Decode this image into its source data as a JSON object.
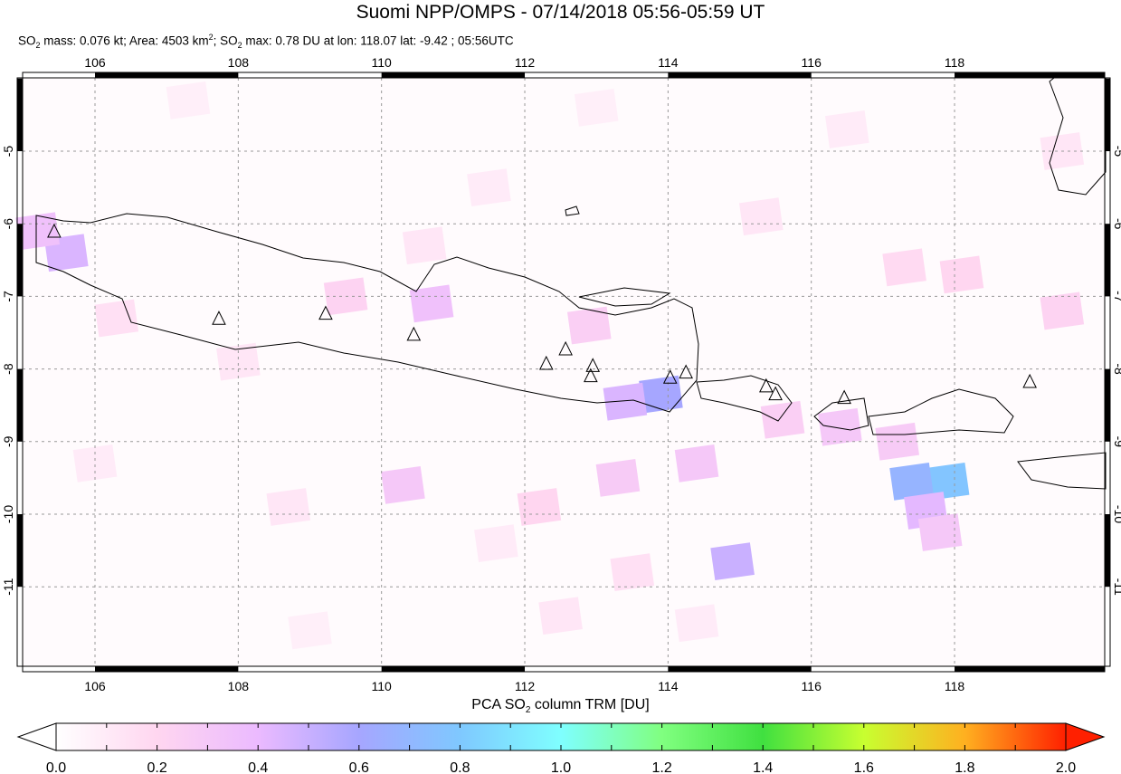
{
  "title": "Suomi NPP/OMPS - 07/14/2018 05:56-05:59 UT",
  "subtitle": {
    "so2_label": "SO",
    "mass_text": " mass: 0.076 kt; Area: 4503 km",
    "so2max_text": "; SO",
    "max_text": " max: 0.78 DU at lon: 118.07 lat: -9.42 ; 05:56UTC",
    "sub2": "2",
    "sup2": "2"
  },
  "map": {
    "lon_range": [
      105,
      120.1
    ],
    "lat_range": [
      -12.1,
      -4
    ],
    "lon_ticks": [
      "106",
      "108",
      "110",
      "112",
      "114",
      "116",
      "118"
    ],
    "lat_ticks": [
      "-5",
      "-6",
      "-7",
      "-8",
      "-9",
      "-10",
      "-11"
    ],
    "volcanoes": [
      [
        105.43,
        -6.11
      ],
      [
        107.73,
        -7.31
      ],
      [
        109.22,
        -7.24
      ],
      [
        110.45,
        -7.53
      ],
      [
        112.3,
        -7.93
      ],
      [
        112.57,
        -7.73
      ],
      [
        112.95,
        -7.96
      ],
      [
        112.92,
        -8.1
      ],
      [
        114.03,
        -8.12
      ],
      [
        114.25,
        -8.05
      ],
      [
        115.37,
        -8.24
      ],
      [
        115.5,
        -8.35
      ],
      [
        116.46,
        -8.4
      ],
      [
        119.05,
        -8.18
      ]
    ],
    "so2_cells": [
      [
        117.9,
        -9.55,
        0.78
      ],
      [
        117.4,
        -9.55,
        0.68
      ],
      [
        117.6,
        -9.95,
        0.42
      ],
      [
        117.8,
        -10.25,
        0.3
      ],
      [
        114.9,
        -10.65,
        0.5
      ],
      [
        113.9,
        -8.35,
        0.6
      ],
      [
        113.4,
        -8.45,
        0.45
      ],
      [
        105.6,
        -6.4,
        0.45
      ],
      [
        105.2,
        -6.1,
        0.35
      ],
      [
        110.7,
        -7.1,
        0.35
      ],
      [
        109.5,
        -7.0,
        0.22
      ],
      [
        110.3,
        -9.6,
        0.3
      ],
      [
        112.2,
        -9.9,
        0.2
      ],
      [
        113.3,
        -9.5,
        0.28
      ],
      [
        114.4,
        -9.3,
        0.3
      ],
      [
        115.6,
        -8.7,
        0.25
      ],
      [
        116.4,
        -8.8,
        0.3
      ],
      [
        117.2,
        -9.0,
        0.28
      ],
      [
        112.9,
        -7.4,
        0.25
      ],
      [
        119.5,
        -7.2,
        0.22
      ],
      [
        118.1,
        -6.7,
        0.2
      ],
      [
        117.3,
        -6.6,
        0.18
      ],
      [
        108.0,
        -7.9,
        0.12
      ],
      [
        106.3,
        -7.3,
        0.15
      ],
      [
        115.3,
        -5.9,
        0.12
      ],
      [
        111.5,
        -5.5,
        0.1
      ],
      [
        113.0,
        -4.4,
        0.08
      ],
      [
        108.7,
        -9.9,
        0.12
      ],
      [
        106.0,
        -9.3,
        0.1
      ],
      [
        114.4,
        -11.5,
        0.1
      ],
      [
        112.5,
        -11.4,
        0.12
      ],
      [
        109.0,
        -11.6,
        0.08
      ],
      [
        119.5,
        -5.0,
        0.12
      ],
      [
        116.5,
        -4.7,
        0.1
      ],
      [
        111.6,
        -10.4,
        0.1
      ],
      [
        113.5,
        -10.8,
        0.15
      ],
      [
        110.6,
        -6.3,
        0.12
      ],
      [
        107.3,
        -4.3,
        0.08
      ]
    ]
  },
  "colorbar": {
    "title_pre": "PCA SO",
    "title_sub": "2",
    "title_post": " column TRM [DU]",
    "ticks": [
      "0.0",
      "0.2",
      "0.4",
      "0.6",
      "0.8",
      "1.0",
      "1.2",
      "1.4",
      "1.6",
      "1.8",
      "2.0"
    ],
    "colors": [
      "#ffffff",
      "#ffd6f0",
      "#ebbaff",
      "#a6a6ff",
      "#7fc8ff",
      "#7fffff",
      "#80ff80",
      "#40e040",
      "#c8ff30",
      "#ffb020",
      "#ff2000"
    ]
  }
}
